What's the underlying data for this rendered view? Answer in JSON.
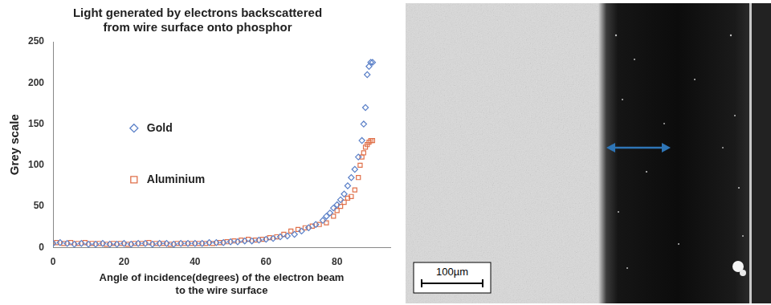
{
  "chart_data": {
    "type": "scatter",
    "title": [
      "Light generated by electrons backscattered",
      "from wire surface onto phosphor"
    ],
    "x_label": [
      "Angle of incidence(degrees) of the electron beam",
      "to the wire surface"
    ],
    "y_label": "Grey scale",
    "xlim": [
      0,
      95
    ],
    "xticks": [
      0,
      20,
      40,
      60,
      80
    ],
    "ylim": [
      0,
      250
    ],
    "yticks": [
      0,
      50,
      100,
      150,
      200,
      250
    ],
    "grid": false,
    "legend": "left",
    "series": [
      {
        "name": "Gold",
        "color": "#5b80c8",
        "marker": "diamond",
        "x": [
          0,
          2,
          4,
          6,
          8,
          10,
          12,
          14,
          16,
          18,
          20,
          22,
          24,
          26,
          28,
          30,
          32,
          34,
          36,
          38,
          40,
          42,
          44,
          46,
          48,
          50,
          52,
          54,
          56,
          58,
          60,
          62,
          64,
          66,
          68,
          70,
          72,
          74,
          76,
          77,
          78,
          79,
          80,
          81,
          82,
          83,
          84,
          85,
          86,
          87,
          87.5,
          88,
          88.5,
          89,
          89.5,
          90
        ],
        "values": [
          5,
          6,
          5,
          4,
          5,
          4,
          4,
          5,
          4,
          4,
          5,
          4,
          5,
          5,
          4,
          5,
          5,
          4,
          5,
          5,
          5,
          5,
          6,
          6,
          6,
          7,
          7,
          8,
          8,
          9,
          10,
          11,
          13,
          14,
          16,
          20,
          24,
          28,
          33,
          38,
          42,
          48,
          52,
          58,
          65,
          75,
          85,
          95,
          110,
          130,
          150,
          170,
          210,
          220,
          225,
          225
        ]
      },
      {
        "name": "Aluminium",
        "color": "#e0704a",
        "marker": "square",
        "x": [
          1,
          3,
          5,
          7,
          9,
          11,
          13,
          15,
          17,
          19,
          21,
          23,
          25,
          27,
          29,
          31,
          33,
          35,
          37,
          39,
          41,
          43,
          45,
          47,
          49,
          51,
          53,
          55,
          57,
          59,
          61,
          63,
          65,
          67,
          69,
          71,
          73,
          75,
          77,
          79,
          80,
          81,
          82,
          83,
          84,
          85,
          86,
          86.5,
          87,
          87.5,
          88,
          88.5,
          89,
          89.5,
          90
        ],
        "values": [
          6,
          5,
          6,
          5,
          6,
          5,
          5,
          4,
          5,
          5,
          4,
          5,
          5,
          6,
          5,
          5,
          4,
          5,
          5,
          5,
          5,
          5,
          5,
          6,
          7,
          8,
          9,
          10,
          9,
          10,
          12,
          13,
          16,
          20,
          22,
          24,
          26,
          28,
          30,
          38,
          45,
          50,
          55,
          60,
          62,
          70,
          85,
          100,
          110,
          115,
          122,
          125,
          128,
          130,
          130
        ]
      }
    ]
  },
  "micrograph": {
    "scale_bar_label": "100µm"
  }
}
